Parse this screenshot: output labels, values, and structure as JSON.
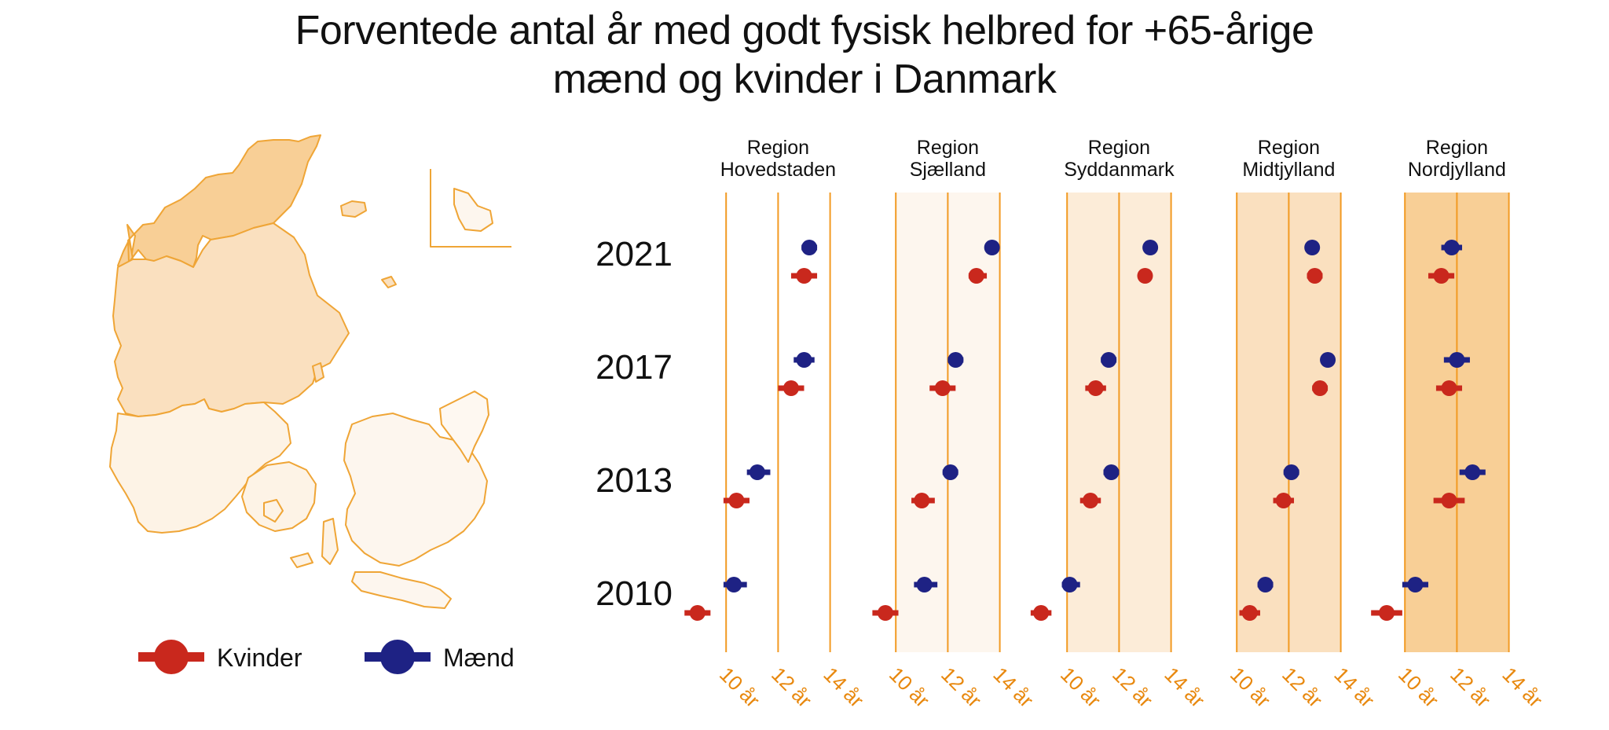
{
  "title": {
    "line1": "Forventede antal år med godt fysisk helbred for +65-årige",
    "line2": "mænd og kvinder i Danmark"
  },
  "colors": {
    "kvinder": "#c9281d",
    "maend": "#1e2284",
    "grid": "#f29a22",
    "axis_label": "#e8880e",
    "map_stroke": "#efa536",
    "text": "#111111"
  },
  "legend": {
    "kvinder": "Kvinder",
    "maend": "Mænd"
  },
  "chart_data": {
    "type": "dot-range",
    "title": "Forventede antal år med godt fysisk helbred for +65-årige mænd og kvinder i Danmark",
    "x_domain": [
      8,
      14
    ],
    "x_ticks": [
      {
        "value": 10,
        "label": "10 år"
      },
      {
        "value": 12,
        "label": "12 år"
      },
      {
        "value": 14,
        "label": "14 år"
      }
    ],
    "years": [
      "2021",
      "2017",
      "2013",
      "2010"
    ],
    "panels": [
      {
        "line1": "Region",
        "line2": "Hovedstaden",
        "shade": "#ffffff",
        "shade_alpha": 0,
        "series": [
          {
            "name": "Mænd",
            "key": "maend",
            "values": [
              {
                "year": "2021",
                "value": 13.2,
                "low": 12.9,
                "high": 13.5
              },
              {
                "year": "2017",
                "value": 13.0,
                "low": 12.6,
                "high": 13.4
              },
              {
                "year": "2013",
                "value": 11.2,
                "low": 10.8,
                "high": 11.7
              },
              {
                "year": "2010",
                "value": 10.3,
                "low": 9.9,
                "high": 10.8
              }
            ]
          },
          {
            "name": "Kvinder",
            "key": "kvinder",
            "values": [
              {
                "year": "2021",
                "value": 13.0,
                "low": 12.5,
                "high": 13.5
              },
              {
                "year": "2017",
                "value": 12.5,
                "low": 12.0,
                "high": 13.0
              },
              {
                "year": "2013",
                "value": 10.4,
                "low": 9.9,
                "high": 10.9
              },
              {
                "year": "2010",
                "value": 8.9,
                "low": 8.4,
                "high": 9.4
              }
            ]
          }
        ]
      },
      {
        "line1": "Region",
        "line2": "Sjælland",
        "shade": "#fdf6ee",
        "shade_alpha": 1,
        "series": [
          {
            "name": "Mænd",
            "key": "maend",
            "values": [
              {
                "year": "2021",
                "value": 13.7,
                "low": 13.5,
                "high": 13.9
              },
              {
                "year": "2017",
                "value": 12.3,
                "low": 12.0,
                "high": 12.6
              },
              {
                "year": "2013",
                "value": 12.1,
                "low": 11.8,
                "high": 12.4
              },
              {
                "year": "2010",
                "value": 11.1,
                "low": 10.7,
                "high": 11.6
              }
            ]
          },
          {
            "name": "Kvinder",
            "key": "kvinder",
            "values": [
              {
                "year": "2021",
                "value": 13.1,
                "low": 12.8,
                "high": 13.5
              },
              {
                "year": "2017",
                "value": 11.8,
                "low": 11.3,
                "high": 12.3
              },
              {
                "year": "2013",
                "value": 11.0,
                "low": 10.6,
                "high": 11.5
              },
              {
                "year": "2010",
                "value": 9.6,
                "low": 9.1,
                "high": 10.1
              }
            ]
          }
        ]
      },
      {
        "line1": "Region",
        "line2": "Syddanmark",
        "shade": "#fcecd8",
        "shade_alpha": 1,
        "series": [
          {
            "name": "Mænd",
            "key": "maend",
            "values": [
              {
                "year": "2021",
                "value": 13.2,
                "low": 13.0,
                "high": 13.4
              },
              {
                "year": "2017",
                "value": 11.6,
                "low": 11.3,
                "high": 11.9
              },
              {
                "year": "2013",
                "value": 11.7,
                "low": 11.4,
                "high": 12.0
              },
              {
                "year": "2010",
                "value": 10.1,
                "low": 9.8,
                "high": 10.5
              }
            ]
          },
          {
            "name": "Kvinder",
            "key": "kvinder",
            "values": [
              {
                "year": "2021",
                "value": 13.0,
                "low": 12.8,
                "high": 13.2
              },
              {
                "year": "2017",
                "value": 11.1,
                "low": 10.7,
                "high": 11.5
              },
              {
                "year": "2013",
                "value": 10.9,
                "low": 10.5,
                "high": 11.3
              },
              {
                "year": "2010",
                "value": 9.0,
                "low": 8.6,
                "high": 9.4
              }
            ]
          }
        ]
      },
      {
        "line1": "Region",
        "line2": "Midtjylland",
        "shade": "#fae0bf",
        "shade_alpha": 1,
        "series": [
          {
            "name": "Mænd",
            "key": "maend",
            "values": [
              {
                "year": "2021",
                "value": 12.9,
                "low": 12.7,
                "high": 13.1
              },
              {
                "year": "2017",
                "value": 13.5,
                "low": 13.3,
                "high": 13.7
              },
              {
                "year": "2013",
                "value": 12.1,
                "low": 11.8,
                "high": 12.4
              },
              {
                "year": "2010",
                "value": 11.1,
                "low": 10.8,
                "high": 11.4
              }
            ]
          },
          {
            "name": "Kvinder",
            "key": "kvinder",
            "values": [
              {
                "year": "2021",
                "value": 13.0,
                "low": 12.7,
                "high": 13.3
              },
              {
                "year": "2017",
                "value": 13.2,
                "low": 12.9,
                "high": 13.5
              },
              {
                "year": "2013",
                "value": 11.8,
                "low": 11.4,
                "high": 12.2
              },
              {
                "year": "2010",
                "value": 10.5,
                "low": 10.1,
                "high": 10.9
              }
            ]
          }
        ]
      },
      {
        "line1": "Region",
        "line2": "Nordjylland",
        "shade": "#f8cf96",
        "shade_alpha": 1,
        "series": [
          {
            "name": "Mænd",
            "key": "maend",
            "values": [
              {
                "year": "2021",
                "value": 11.8,
                "low": 11.4,
                "high": 12.2
              },
              {
                "year": "2017",
                "value": 12.0,
                "low": 11.5,
                "high": 12.5
              },
              {
                "year": "2013",
                "value": 12.6,
                "low": 12.1,
                "high": 13.1
              },
              {
                "year": "2010",
                "value": 10.4,
                "low": 9.9,
                "high": 10.9
              }
            ]
          },
          {
            "name": "Kvinder",
            "key": "kvinder",
            "values": [
              {
                "year": "2021",
                "value": 11.4,
                "low": 10.9,
                "high": 11.9
              },
              {
                "year": "2017",
                "value": 11.7,
                "low": 11.2,
                "high": 12.2
              },
              {
                "year": "2013",
                "value": 11.7,
                "low": 11.1,
                "high": 12.3
              },
              {
                "year": "2010",
                "value": 9.3,
                "low": 8.7,
                "high": 9.9
              }
            ]
          }
        ]
      }
    ]
  }
}
